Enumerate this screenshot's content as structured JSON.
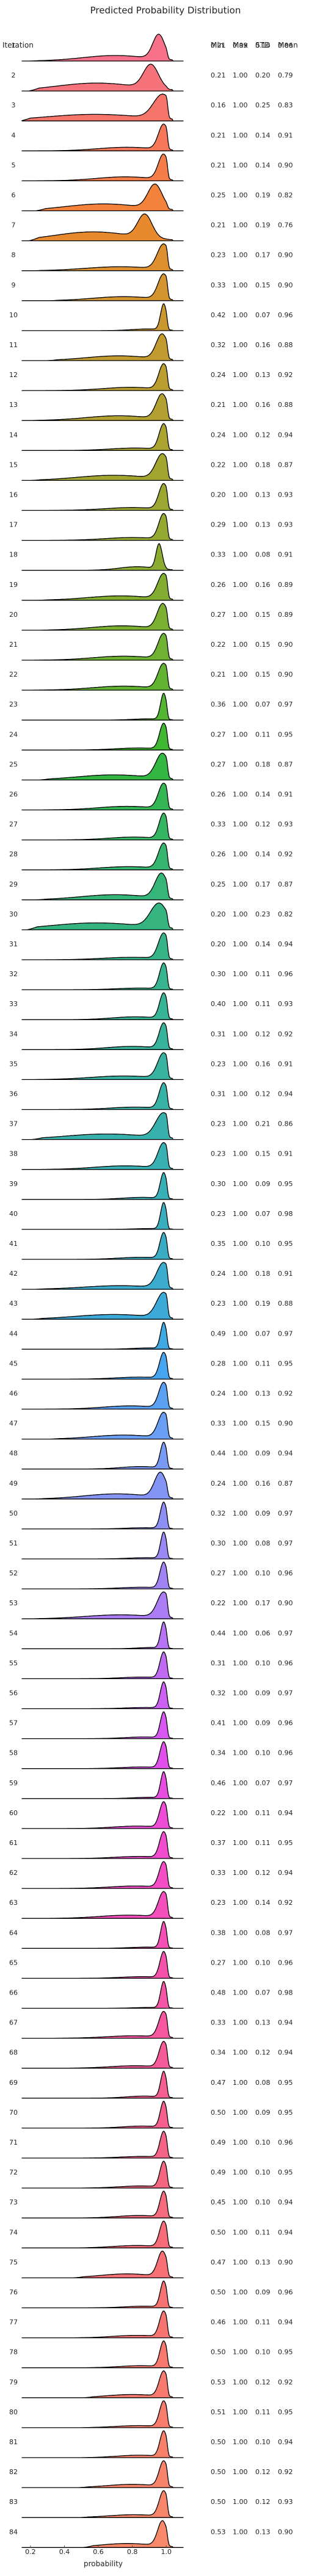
{
  "chart_data": {
    "type": "ridgeline",
    "title": "Predicted Probability Distribution",
    "xlabel": "probability",
    "row_label_header": "Iteration",
    "stat_headers": [
      "Min",
      "Max",
      "STD",
      "Mean"
    ],
    "xlim": [
      0.15,
      1.1
    ],
    "x_ticks": [
      "0.2",
      "0.4",
      "0.6",
      "0.8",
      "1.0"
    ],
    "x_tick_values": [
      0.2,
      0.4,
      0.6,
      0.8,
      1.0
    ],
    "colors": {
      "outline": "#000000",
      "baseline": "#d9d9d9"
    },
    "rows": [
      {
        "iteration": "1",
        "min": "0.21",
        "max": "0.99",
        "std": "0.16",
        "mean": "0.86",
        "color": "#f77189"
      },
      {
        "iteration": "2",
        "min": "0.21",
        "max": "1.00",
        "std": "0.20",
        "mean": "0.79",
        "color": "#f6737b"
      },
      {
        "iteration": "3",
        "min": "0.16",
        "max": "1.00",
        "std": "0.25",
        "mean": "0.83",
        "color": "#f6756b"
      },
      {
        "iteration": "4",
        "min": "0.21",
        "max": "1.00",
        "std": "0.14",
        "mean": "0.91",
        "color": "#f5785a"
      },
      {
        "iteration": "5",
        "min": "0.21",
        "max": "1.00",
        "std": "0.14",
        "mean": "0.90",
        "color": "#f47d4a"
      },
      {
        "iteration": "6",
        "min": "0.25",
        "max": "1.00",
        "std": "0.19",
        "mean": "0.82",
        "color": "#f3823a"
      },
      {
        "iteration": "7",
        "min": "0.21",
        "max": "1.00",
        "std": "0.19",
        "mean": "0.76",
        "color": "#e8892e"
      },
      {
        "iteration": "8",
        "min": "0.23",
        "max": "1.00",
        "std": "0.17",
        "mean": "0.90",
        "color": "#de8f2f"
      },
      {
        "iteration": "9",
        "min": "0.33",
        "max": "1.00",
        "std": "0.15",
        "mean": "0.90",
        "color": "#d4942f"
      },
      {
        "iteration": "10",
        "min": "0.42",
        "max": "1.00",
        "std": "0.07",
        "mean": "0.96",
        "color": "#cb982f"
      },
      {
        "iteration": "11",
        "min": "0.32",
        "max": "1.00",
        "std": "0.16",
        "mean": "0.88",
        "color": "#c29b30"
      },
      {
        "iteration": "12",
        "min": "0.24",
        "max": "1.00",
        "std": "0.13",
        "mean": "0.92",
        "color": "#ba9e30"
      },
      {
        "iteration": "13",
        "min": "0.21",
        "max": "1.00",
        "std": "0.16",
        "mean": "0.88",
        "color": "#b2a130"
      },
      {
        "iteration": "14",
        "min": "0.24",
        "max": "1.00",
        "std": "0.12",
        "mean": "0.94",
        "color": "#aba330"
      },
      {
        "iteration": "15",
        "min": "0.22",
        "max": "1.00",
        "std": "0.18",
        "mean": "0.87",
        "color": "#a3a531"
      },
      {
        "iteration": "16",
        "min": "0.20",
        "max": "1.00",
        "std": "0.13",
        "mean": "0.93",
        "color": "#9ca731"
      },
      {
        "iteration": "17",
        "min": "0.29",
        "max": "1.00",
        "std": "0.13",
        "mean": "0.93",
        "color": "#94a931"
      },
      {
        "iteration": "18",
        "min": "0.33",
        "max": "1.00",
        "std": "0.08",
        "mean": "0.91",
        "color": "#8cab31"
      },
      {
        "iteration": "19",
        "min": "0.26",
        "max": "1.00",
        "std": "0.16",
        "mean": "0.89",
        "color": "#83ad31"
      },
      {
        "iteration": "20",
        "min": "0.27",
        "max": "1.00",
        "std": "0.15",
        "mean": "0.89",
        "color": "#7aaf31"
      },
      {
        "iteration": "21",
        "min": "0.22",
        "max": "1.00",
        "std": "0.15",
        "mean": "0.90",
        "color": "#6fb131"
      },
      {
        "iteration": "22",
        "min": "0.21",
        "max": "1.00",
        "std": "0.15",
        "mean": "0.90",
        "color": "#62b331"
      },
      {
        "iteration": "23",
        "min": "0.36",
        "max": "1.00",
        "std": "0.07",
        "mean": "0.97",
        "color": "#53b531"
      },
      {
        "iteration": "24",
        "min": "0.27",
        "max": "1.00",
        "std": "0.11",
        "mean": "0.95",
        "color": "#3fb731"
      },
      {
        "iteration": "25",
        "min": "0.27",
        "max": "1.00",
        "std": "0.18",
        "mean": "0.87",
        "color": "#33b742"
      },
      {
        "iteration": "26",
        "min": "0.26",
        "max": "1.00",
        "std": "0.14",
        "mean": "0.91",
        "color": "#34b655"
      },
      {
        "iteration": "27",
        "min": "0.33",
        "max": "1.00",
        "std": "0.12",
        "mean": "0.93",
        "color": "#35b663"
      },
      {
        "iteration": "28",
        "min": "0.26",
        "max": "1.00",
        "std": "0.14",
        "mean": "0.92",
        "color": "#35b56e"
      },
      {
        "iteration": "29",
        "min": "0.25",
        "max": "1.00",
        "std": "0.17",
        "mean": "0.87",
        "color": "#36b578"
      },
      {
        "iteration": "30",
        "min": "0.20",
        "max": "1.00",
        "std": "0.23",
        "mean": "0.82",
        "color": "#36b480"
      },
      {
        "iteration": "31",
        "min": "0.20",
        "max": "1.00",
        "std": "0.14",
        "mean": "0.94",
        "color": "#36b488"
      },
      {
        "iteration": "32",
        "min": "0.30",
        "max": "1.00",
        "std": "0.11",
        "mean": "0.96",
        "color": "#37b38f"
      },
      {
        "iteration": "33",
        "min": "0.40",
        "max": "1.00",
        "std": "0.11",
        "mean": "0.93",
        "color": "#37b395"
      },
      {
        "iteration": "34",
        "min": "0.31",
        "max": "1.00",
        "std": "0.12",
        "mean": "0.92",
        "color": "#37b29b"
      },
      {
        "iteration": "35",
        "min": "0.23",
        "max": "1.00",
        "std": "0.16",
        "mean": "0.91",
        "color": "#38b2a1"
      },
      {
        "iteration": "36",
        "min": "0.31",
        "max": "1.00",
        "std": "0.12",
        "mean": "0.94",
        "color": "#38b1a6"
      },
      {
        "iteration": "37",
        "min": "0.23",
        "max": "1.00",
        "std": "0.21",
        "mean": "0.86",
        "color": "#38b1ac"
      },
      {
        "iteration": "38",
        "min": "0.23",
        "max": "1.00",
        "std": "0.15",
        "mean": "0.91",
        "color": "#39b0b2"
      },
      {
        "iteration": "39",
        "min": "0.30",
        "max": "1.00",
        "std": "0.09",
        "mean": "0.95",
        "color": "#39afb8"
      },
      {
        "iteration": "40",
        "min": "0.23",
        "max": "1.00",
        "std": "0.07",
        "mean": "0.98",
        "color": "#3aaebe"
      },
      {
        "iteration": "41",
        "min": "0.35",
        "max": "1.00",
        "std": "0.10",
        "mean": "0.95",
        "color": "#3aadc5"
      },
      {
        "iteration": "42",
        "min": "0.24",
        "max": "1.00",
        "std": "0.18",
        "mean": "0.91",
        "color": "#3bacce"
      },
      {
        "iteration": "43",
        "min": "0.23",
        "max": "1.00",
        "std": "0.19",
        "mean": "0.88",
        "color": "#3caad8"
      },
      {
        "iteration": "44",
        "min": "0.49",
        "max": "1.00",
        "std": "0.07",
        "mean": "0.97",
        "color": "#3ea8e3"
      },
      {
        "iteration": "45",
        "min": "0.28",
        "max": "1.00",
        "std": "0.11",
        "mean": "0.95",
        "color": "#47a5ef"
      },
      {
        "iteration": "46",
        "min": "0.24",
        "max": "1.00",
        "std": "0.13",
        "mean": "0.92",
        "color": "#5aa1f4"
      },
      {
        "iteration": "47",
        "min": "0.33",
        "max": "1.00",
        "std": "0.15",
        "mean": "0.90",
        "color": "#6a9df4"
      },
      {
        "iteration": "48",
        "min": "0.44",
        "max": "1.00",
        "std": "0.09",
        "mean": "0.94",
        "color": "#7899f4"
      },
      {
        "iteration": "49",
        "min": "0.24",
        "max": "1.00",
        "std": "0.16",
        "mean": "0.87",
        "color": "#8494f4"
      },
      {
        "iteration": "50",
        "min": "0.32",
        "max": "1.00",
        "std": "0.09",
        "mean": "0.97",
        "color": "#8e8ff4"
      },
      {
        "iteration": "51",
        "min": "0.30",
        "max": "1.00",
        "std": "0.08",
        "mean": "0.97",
        "color": "#9889f4"
      },
      {
        "iteration": "52",
        "min": "0.27",
        "max": "1.00",
        "std": "0.10",
        "mean": "0.96",
        "color": "#a283f4"
      },
      {
        "iteration": "53",
        "min": "0.22",
        "max": "1.00",
        "std": "0.17",
        "mean": "0.90",
        "color": "#ac7cf4"
      },
      {
        "iteration": "54",
        "min": "0.44",
        "max": "1.00",
        "std": "0.06",
        "mean": "0.97",
        "color": "#b674f4"
      },
      {
        "iteration": "55",
        "min": "0.31",
        "max": "1.00",
        "std": "0.10",
        "mean": "0.96",
        "color": "#c16bf4"
      },
      {
        "iteration": "56",
        "min": "0.32",
        "max": "1.00",
        "std": "0.09",
        "mean": "0.97",
        "color": "#cc60f4"
      },
      {
        "iteration": "57",
        "min": "0.41",
        "max": "1.00",
        "std": "0.09",
        "mean": "0.96",
        "color": "#d856f2"
      },
      {
        "iteration": "58",
        "min": "0.34",
        "max": "1.00",
        "std": "0.10",
        "mean": "0.96",
        "color": "#e150ea"
      },
      {
        "iteration": "59",
        "min": "0.46",
        "max": "1.00",
        "std": "0.07",
        "mean": "0.97",
        "color": "#e84ee1"
      },
      {
        "iteration": "60",
        "min": "0.22",
        "max": "1.00",
        "std": "0.11",
        "mean": "0.94",
        "color": "#ee4dd8"
      },
      {
        "iteration": "61",
        "min": "0.37",
        "max": "1.00",
        "std": "0.11",
        "mean": "0.95",
        "color": "#f24ccf"
      },
      {
        "iteration": "62",
        "min": "0.33",
        "max": "1.00",
        "std": "0.12",
        "mean": "0.94",
        "color": "#f44dc6"
      },
      {
        "iteration": "63",
        "min": "0.23",
        "max": "1.00",
        "std": "0.14",
        "mean": "0.92",
        "color": "#f54ebd"
      },
      {
        "iteration": "64",
        "min": "0.38",
        "max": "1.00",
        "std": "0.08",
        "mean": "0.97",
        "color": "#f550b5"
      },
      {
        "iteration": "65",
        "min": "0.27",
        "max": "1.00",
        "std": "0.10",
        "mean": "0.96",
        "color": "#f552ad"
      },
      {
        "iteration": "66",
        "min": "0.48",
        "max": "1.00",
        "std": "0.07",
        "mean": "0.98",
        "color": "#f555a6"
      },
      {
        "iteration": "67",
        "min": "0.33",
        "max": "1.00",
        "std": "0.13",
        "mean": "0.94",
        "color": "#f5589f"
      },
      {
        "iteration": "68",
        "min": "0.34",
        "max": "1.00",
        "std": "0.12",
        "mean": "0.94",
        "color": "#f55b98"
      },
      {
        "iteration": "69",
        "min": "0.47",
        "max": "1.00",
        "std": "0.08",
        "mean": "0.95",
        "color": "#f55e92"
      },
      {
        "iteration": "70",
        "min": "0.50",
        "max": "1.00",
        "std": "0.09",
        "mean": "0.95",
        "color": "#f5618c"
      },
      {
        "iteration": "71",
        "min": "0.49",
        "max": "1.00",
        "std": "0.10",
        "mean": "0.96",
        "color": "#f56486"
      },
      {
        "iteration": "72",
        "min": "0.49",
        "max": "1.00",
        "std": "0.10",
        "mean": "0.95",
        "color": "#f56781"
      },
      {
        "iteration": "73",
        "min": "0.45",
        "max": "1.00",
        "std": "0.10",
        "mean": "0.94",
        "color": "#f66a7d"
      },
      {
        "iteration": "74",
        "min": "0.50",
        "max": "1.00",
        "std": "0.11",
        "mean": "0.94",
        "color": "#f66d79"
      },
      {
        "iteration": "75",
        "min": "0.47",
        "max": "1.00",
        "std": "0.13",
        "mean": "0.90",
        "color": "#f67076"
      },
      {
        "iteration": "76",
        "min": "0.50",
        "max": "1.00",
        "std": "0.09",
        "mean": "0.96",
        "color": "#f67373"
      },
      {
        "iteration": "77",
        "min": "0.46",
        "max": "1.00",
        "std": "0.11",
        "mean": "0.94",
        "color": "#f67571"
      },
      {
        "iteration": "78",
        "min": "0.50",
        "max": "1.00",
        "std": "0.10",
        "mean": "0.95",
        "color": "#f6786f"
      },
      {
        "iteration": "79",
        "min": "0.53",
        "max": "1.00",
        "std": "0.12",
        "mean": "0.92",
        "color": "#f67a6d"
      },
      {
        "iteration": "80",
        "min": "0.51",
        "max": "1.00",
        "std": "0.11",
        "mean": "0.95",
        "color": "#f67d6c"
      },
      {
        "iteration": "81",
        "min": "0.50",
        "max": "1.00",
        "std": "0.10",
        "mean": "0.94",
        "color": "#f7806b"
      },
      {
        "iteration": "82",
        "min": "0.50",
        "max": "1.00",
        "std": "0.12",
        "mean": "0.92",
        "color": "#f7836a"
      },
      {
        "iteration": "83",
        "min": "0.50",
        "max": "1.00",
        "std": "0.12",
        "mean": "0.93",
        "color": "#f78569"
      },
      {
        "iteration": "84",
        "min": "0.53",
        "max": "1.00",
        "std": "0.13",
        "mean": "0.90",
        "color": "#f78869"
      }
    ]
  }
}
